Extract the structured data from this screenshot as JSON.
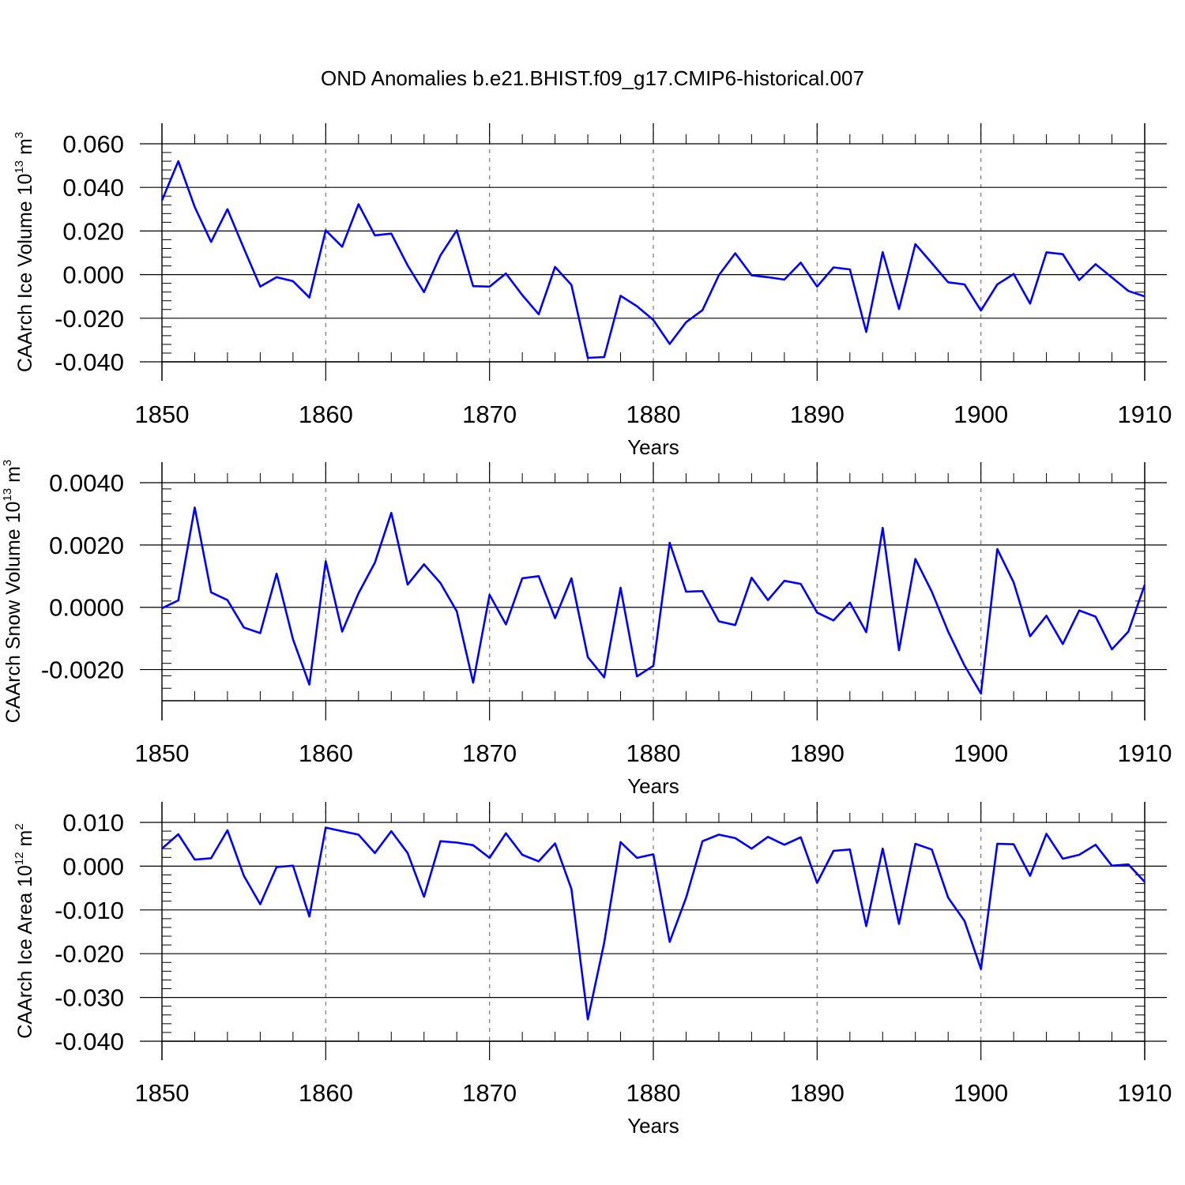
{
  "chart_data": {
    "title": "OND Anomalies b.e21.BHIST.f09_g17.CMIP6-historical.007",
    "series_color": "#0000ff",
    "panels": [
      {
        "type": "line",
        "ylabel_text": "CAArch Ice Volume 10",
        "ylabel_exp": "13",
        "ylabel_unit": " m",
        "ylabel_unit_exp": "3",
        "xlabel": "Years",
        "xlim": [
          1850,
          1910
        ],
        "ylim": [
          -0.04,
          0.06
        ],
        "yticks": [
          -0.04,
          -0.02,
          0.0,
          0.02,
          0.04,
          0.06
        ],
        "ytick_labels": [
          "-0.040",
          "-0.020",
          "0.000",
          "0.020",
          "0.040",
          "0.060"
        ],
        "xticks": [
          1850,
          1860,
          1870,
          1880,
          1890,
          1900,
          1910
        ],
        "xtick_labels": [
          "1850",
          "1860",
          "1870",
          "1880",
          "1890",
          "1900",
          "1910"
        ],
        "start_year": 1850,
        "values": [
          0.034,
          0.052,
          0.031,
          0.015,
          0.03,
          0.012,
          -0.0055,
          -0.0012,
          -0.003,
          -0.0105,
          0.0203,
          0.0128,
          0.0323,
          0.018,
          0.0188,
          0.0042,
          -0.008,
          0.0088,
          0.0203,
          -0.0053,
          -0.0055,
          0.0005,
          -0.0094,
          -0.0182,
          0.0035,
          -0.0047,
          -0.0382,
          -0.0378,
          -0.0097,
          -0.0145,
          -0.0208,
          -0.0318,
          -0.0218,
          -0.0163,
          -0.0003,
          0.0098,
          -0.0003,
          -0.0012,
          -0.0023,
          0.0055,
          -0.0055,
          0.0033,
          0.0024,
          -0.0263,
          0.0103,
          -0.0158,
          0.014,
          0.0053,
          -0.0035,
          -0.0045,
          -0.0165,
          -0.0045,
          0.0003,
          -0.0133,
          0.0102,
          0.0094,
          -0.0025,
          0.0048,
          -0.0013,
          -0.0075,
          -0.01
        ]
      },
      {
        "type": "line",
        "ylabel_text": "CAArch Snow Volume 10",
        "ylabel_exp": "13",
        "ylabel_unit": " m",
        "ylabel_unit_exp": "3",
        "xlabel": "Years",
        "xlim": [
          1850,
          1910
        ],
        "ylim": [
          -0.003,
          0.004
        ],
        "yticks": [
          -0.002,
          0.0,
          0.002,
          0.004
        ],
        "ytick_labels": [
          "-0.0020",
          "0.0000",
          "0.0020",
          "0.0040"
        ],
        "xticks": [
          1850,
          1860,
          1870,
          1880,
          1890,
          1900,
          1910
        ],
        "xtick_labels": [
          "1850",
          "1860",
          "1870",
          "1880",
          "1890",
          "1900",
          "1910"
        ],
        "start_year": 1850,
        "values": [
          -3e-05,
          0.00022,
          0.0032,
          0.00048,
          0.00023,
          -0.00065,
          -0.00083,
          0.00108,
          -0.00103,
          -0.00248,
          0.00148,
          -0.00078,
          0.00045,
          0.00143,
          0.00303,
          0.00073,
          0.00138,
          0.00078,
          -0.00013,
          -0.00242,
          0.0004,
          -0.00055,
          0.00093,
          0.001,
          -0.00035,
          0.00093,
          -0.0016,
          -0.00225,
          0.00063,
          -0.00222,
          -0.00188,
          0.00207,
          0.0005,
          0.00052,
          -0.00045,
          -0.00057,
          0.00095,
          0.00023,
          0.00085,
          0.00075,
          -0.00017,
          -0.00042,
          0.00015,
          -0.0008,
          0.00255,
          -0.00138,
          0.00155,
          0.0005,
          -0.00078,
          -0.00187,
          -0.00277,
          0.00187,
          0.0008,
          -0.00093,
          -0.00027,
          -0.00118,
          -0.0001,
          -0.0003,
          -0.00135,
          -0.00078,
          0.00072
        ]
      },
      {
        "type": "line",
        "ylabel_text": "CAArch Ice Area 10",
        "ylabel_exp": "12",
        "ylabel_unit": " m",
        "ylabel_unit_exp": "2",
        "xlabel": "Years",
        "xlim": [
          1850,
          1910
        ],
        "ylim": [
          -0.04,
          0.01
        ],
        "yticks": [
          -0.04,
          -0.03,
          -0.02,
          -0.01,
          0.0,
          0.01
        ],
        "ytick_labels": [
          "-0.040",
          "-0.030",
          "-0.020",
          "-0.010",
          "0.000",
          "0.010"
        ],
        "xticks": [
          1850,
          1860,
          1870,
          1880,
          1890,
          1900,
          1910
        ],
        "xtick_labels": [
          "1850",
          "1860",
          "1870",
          "1880",
          "1890",
          "1900",
          "1910"
        ],
        "start_year": 1850,
        "values": [
          0.004,
          0.0073,
          0.0015,
          0.0018,
          0.0082,
          -0.0022,
          -0.0087,
          -0.0002,
          0.0001,
          -0.0115,
          0.0088,
          0.008,
          0.0072,
          0.003,
          0.008,
          0.003,
          -0.007,
          0.0057,
          0.0054,
          0.0048,
          0.0019,
          0.0075,
          0.0026,
          0.0011,
          0.0052,
          -0.0052,
          -0.035,
          -0.0175,
          0.0055,
          0.0019,
          0.0027,
          -0.0173,
          -0.0072,
          0.0057,
          0.0072,
          0.0064,
          0.004,
          0.0067,
          0.0049,
          0.0066,
          -0.0038,
          0.0035,
          0.0038,
          -0.0137,
          0.004,
          -0.0132,
          0.0051,
          0.0038,
          -0.0072,
          -0.0125,
          -0.0235,
          0.0051,
          0.005,
          -0.0022,
          0.0074,
          0.0017,
          0.0026,
          0.0049,
          0.0001,
          0.0004,
          -0.0036
        ]
      }
    ]
  }
}
